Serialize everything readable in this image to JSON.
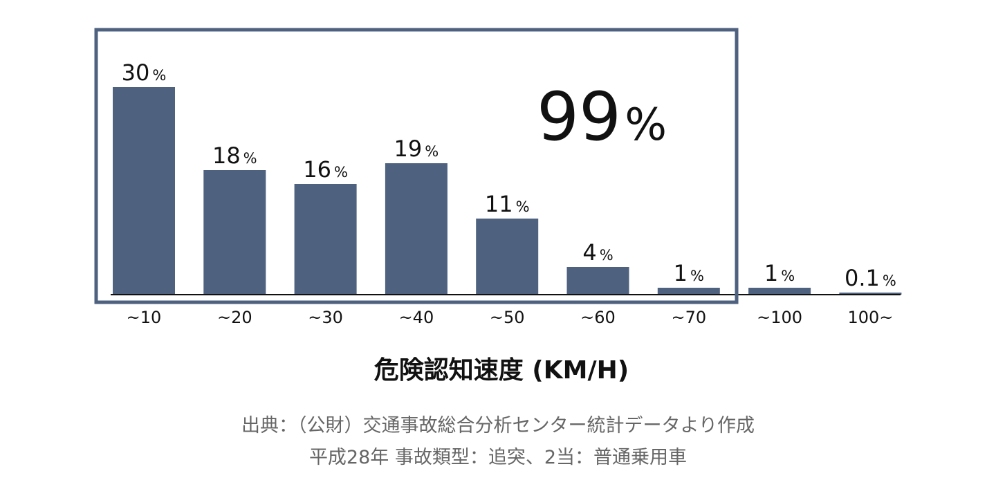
{
  "chart_data": {
    "type": "bar",
    "categories": [
      "~10",
      "~20",
      "~30",
      "~40",
      "~50",
      "~60",
      "~70",
      "~100",
      "100~"
    ],
    "values": [
      30,
      18,
      16,
      19,
      11,
      4,
      1,
      1,
      0.1
    ],
    "value_labels": [
      "30",
      "18",
      "16",
      "19",
      "11",
      "4",
      "1",
      "1",
      "0.1"
    ],
    "value_unit": "%",
    "xlabel": "危険認知速度 (KM/H)",
    "highlight": {
      "label": "99%",
      "value": "99",
      "unit": "%",
      "covers_categories": [
        "~10",
        "~20",
        "~30",
        "~40",
        "~50",
        "~60",
        "~70"
      ]
    },
    "ylim": [
      0,
      30
    ],
    "grid": false
  },
  "source": {
    "line1": "出典：（公財）交通事故総合分析センター統計データより作成",
    "line2": "平成28年 事故類型：追突、2当：普通乗用車"
  },
  "colors": {
    "bar": "#4e617f",
    "highlight_box": "#4e617f",
    "text": "#111111",
    "source_text": "#666666"
  }
}
